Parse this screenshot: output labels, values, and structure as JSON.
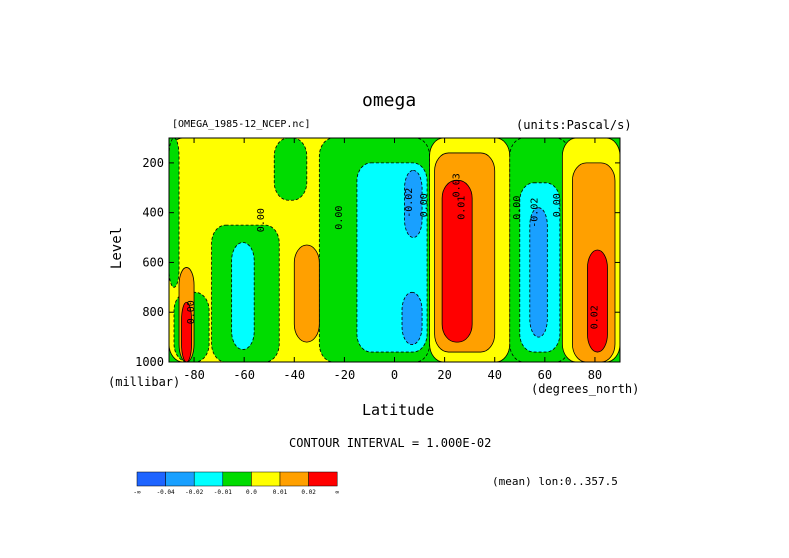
{
  "chart_data": {
    "type": "contour",
    "title": "omega",
    "source_file": "[OMEGA_1985-12_NCEP.nc]",
    "units": "(units:Pascal/s)",
    "xlabel": "Latitude",
    "x_units": "(degrees_north)",
    "ylabel": "Level",
    "y_units": "(millibar)",
    "x_range": [
      -90,
      90
    ],
    "y_range": [
      1000,
      100
    ],
    "x_ticks": [
      -80,
      -60,
      -40,
      -20,
      0,
      20,
      40,
      60,
      80
    ],
    "x_tick_labels": [
      "-80",
      "-60",
      "-40",
      "-20",
      "0",
      "20",
      "40",
      "60",
      "80"
    ],
    "y_ticks": [
      200,
      400,
      600,
      800,
      1000
    ],
    "y_tick_labels": [
      "200",
      "400",
      "600",
      "800",
      "1000"
    ],
    "contour_interval_text": "CONTOUR INTERVAL = 1.000E-02",
    "footer_text": "(mean) lon:0..357.5",
    "contour_labels": [
      {
        "text": "0.00",
        "lat": -52,
        "level": 430
      },
      {
        "text": "0.00",
        "lat": -21,
        "level": 420
      },
      {
        "text": "0.00",
        "lat": 13,
        "level": 370
      },
      {
        "text": "0.00",
        "lat": 50,
        "level": 380
      },
      {
        "text": "0.00",
        "lat": 66,
        "level": 370
      },
      {
        "text": "-0.02",
        "lat": 7,
        "level": 360
      },
      {
        "text": "0.03",
        "lat": 26,
        "level": 290
      },
      {
        "text": "0.01",
        "lat": 28,
        "level": 380
      },
      {
        "text": "-0.02",
        "lat": 57,
        "level": 400
      },
      {
        "text": "0.00",
        "lat": -80,
        "level": 800
      },
      {
        "text": "0.02",
        "lat": 81,
        "level": 820
      }
    ],
    "regions": [
      {
        "category": "0.0..0.01",
        "lat_min": -90,
        "lat_max": -10,
        "level_min": 100,
        "level_max": 1000
      },
      {
        "category": "-0.01..0.0",
        "lat_min": -90,
        "lat_max": -86,
        "level_min": 100,
        "level_max": 700
      },
      {
        "category": "-0.01..0.0",
        "lat_min": -88,
        "lat_max": -74,
        "level_min": 720,
        "level_max": 1000
      },
      {
        "category": "0.01..0.02",
        "lat_min": -86,
        "lat_max": -80,
        "level_min": 620,
        "level_max": 1000
      },
      {
        "category": ">0.02",
        "lat_min": -85,
        "lat_max": -81,
        "level_min": 760,
        "level_max": 1000
      },
      {
        "category": "-0.01..0.0",
        "lat_min": -73,
        "lat_max": -46,
        "level_min": 450,
        "level_max": 1000
      },
      {
        "category": "-0.02..-0.01",
        "lat_min": -65,
        "lat_max": -56,
        "level_min": 520,
        "level_max": 950
      },
      {
        "category": "-0.01..0.0",
        "lat_min": -48,
        "lat_max": -35,
        "level_min": 100,
        "level_max": 350
      },
      {
        "category": "-0.01..0.0",
        "lat_min": -30,
        "lat_max": 14,
        "level_min": 100,
        "level_max": 1000
      },
      {
        "category": "-0.02..-0.01",
        "lat_min": -15,
        "lat_max": 13,
        "level_min": 200,
        "level_max": 960
      },
      {
        "category": "-0.04..-0.02",
        "lat_min": 4,
        "lat_max": 11,
        "level_min": 230,
        "level_max": 500
      },
      {
        "category": "-0.04..-0.02",
        "lat_min": 3,
        "lat_max": 11,
        "level_min": 720,
        "level_max": 930
      },
      {
        "category": "0.01..0.02",
        "lat_min": -40,
        "lat_max": -30,
        "level_min": 530,
        "level_max": 920
      },
      {
        "category": "0.0..0.01",
        "lat_min": 14,
        "lat_max": 46,
        "level_min": 100,
        "level_max": 1000
      },
      {
        "category": "0.01..0.02",
        "lat_min": 16,
        "lat_max": 40,
        "level_min": 160,
        "level_max": 960
      },
      {
        "category": ">0.02",
        "lat_min": 19,
        "lat_max": 31,
        "level_min": 270,
        "level_max": 920
      },
      {
        "category": "-0.01..0.0",
        "lat_min": 46,
        "lat_max": 70,
        "level_min": 100,
        "level_max": 1000
      },
      {
        "category": "-0.02..-0.01",
        "lat_min": 50,
        "lat_max": 66,
        "level_min": 280,
        "level_max": 960
      },
      {
        "category": "-0.04..-0.02",
        "lat_min": 54,
        "lat_max": 61,
        "level_min": 380,
        "level_max": 900
      },
      {
        "category": "0.0..0.01",
        "lat_min": 67,
        "lat_max": 90,
        "level_min": 100,
        "level_max": 1000
      },
      {
        "category": "0.01..0.02",
        "lat_min": 71,
        "lat_max": 88,
        "level_min": 200,
        "level_max": 1000
      },
      {
        "category": ">0.02",
        "lat_min": 77,
        "lat_max": 85,
        "level_min": 550,
        "level_max": 960
      }
    ],
    "legend": {
      "colors": [
        "#1e64ff",
        "#19a0ff",
        "#00ffff",
        "#00dc00",
        "#ffff00",
        "#ffa000",
        "#ff0000"
      ],
      "labels": [
        "-∞",
        "-0.04",
        "-0.02",
        "-0.01",
        "0.0",
        "0.01",
        "0.02",
        "∞"
      ],
      "categories": [
        "<-0.04",
        "-0.04..-0.02",
        "-0.02..-0.01",
        "-0.01..0.0",
        "0.0..0.01",
        "0.01..0.02",
        ">0.02"
      ]
    }
  }
}
